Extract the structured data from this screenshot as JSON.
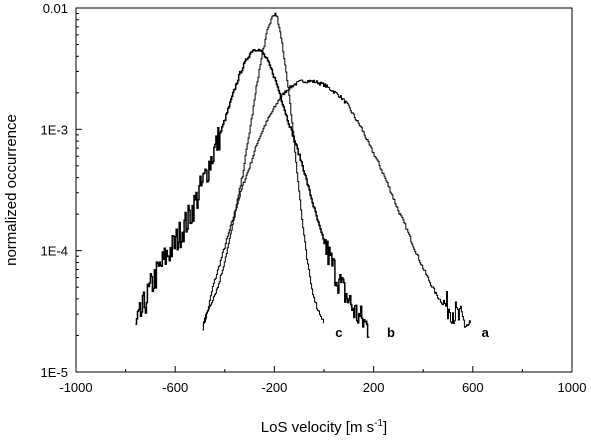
{
  "chart_data": {
    "type": "line",
    "title": "",
    "xlabel": "LoS velocity [m s",
    "xlabel_superscript": "-1",
    "xlabel_suffix": "]",
    "ylabel": "normalized occurrence",
    "xlim": [
      -1000,
      1000
    ],
    "ylim": [
      1e-05,
      0.01
    ],
    "yscale": "log",
    "grid": false,
    "legend": "none",
    "x_ticks": [
      -1000,
      -600,
      -200,
      200,
      600,
      1000
    ],
    "x_tick_labels": [
      "-1000",
      "-600",
      "-200",
      "200",
      "600",
      "1000"
    ],
    "y_ticks": [
      1e-05,
      0.0001,
      0.001,
      0.01
    ],
    "y_tick_labels": [
      "1E-5",
      "1E-4",
      "1E-3",
      "0.01"
    ],
    "line_color": "#000000",
    "series": [
      {
        "label": "a",
        "label_at": [
          650,
          2.1e-05
        ],
        "noise_from": 480,
        "x": [
          -490,
          -470,
          -450,
          -420,
          -390,
          -360,
          -330,
          -300,
          -270,
          -240,
          -210,
          -180,
          -150,
          -120,
          -90,
          -60,
          -30,
          0,
          30,
          60,
          90,
          120,
          150,
          180,
          210,
          240,
          270,
          300,
          330,
          360,
          390,
          420,
          450,
          480,
          510,
          540,
          560,
          580,
          590
        ],
        "y": [
          2.3e-05,
          3.2e-05,
          5e-05,
          8e-05,
          0.00013,
          0.00021,
          0.00034,
          0.0005,
          0.00078,
          0.00108,
          0.0014,
          0.0018,
          0.00212,
          0.00235,
          0.0025,
          0.0025,
          0.00245,
          0.00232,
          0.0021,
          0.0019,
          0.00163,
          0.00128,
          0.00102,
          0.00075,
          0.00057,
          0.00042,
          0.0003,
          0.00021,
          0.000155,
          0.000108,
          7.8e-05,
          5.8e-05,
          4.4e-05,
          3.6e-05,
          3.4e-05,
          2.8e-05,
          2.6e-05,
          2.4e-05,
          2.3e-05
        ]
      },
      {
        "label": "b",
        "label_at": [
          270,
          2.1e-05
        ],
        "noise_from": -760,
        "x": [
          -760,
          -730,
          -700,
          -670,
          -640,
          -610,
          -580,
          -550,
          -520,
          -490,
          -460,
          -430,
          -400,
          -370,
          -340,
          -310,
          -290,
          -270,
          -250,
          -230,
          -210,
          -190,
          -170,
          -150,
          -130,
          -110,
          -90,
          -70,
          -50,
          -30,
          -10,
          10,
          30,
          50,
          70,
          90,
          110,
          130,
          150,
          170,
          180
        ],
        "y": [
          2.3e-05,
          3.4e-05,
          5e-05,
          6.8e-05,
          8.8e-05,
          0.000108,
          0.00014,
          0.00018,
          0.00025,
          0.00036,
          0.00054,
          0.0008,
          0.00122,
          0.0019,
          0.0029,
          0.0039,
          0.0045,
          0.0046,
          0.0043,
          0.0037,
          0.003,
          0.0023,
          0.0017,
          0.00124,
          0.00094,
          0.0007,
          0.00052,
          0.00037,
          0.00026,
          0.000185,
          0.000135,
          0.0001,
          7.8e-05,
          6.2e-05,
          5e-05,
          4.2e-05,
          3.5e-05,
          3e-05,
          2.7e-05,
          2.4e-05,
          2.3e-05
        ]
      },
      {
        "label": "c",
        "label_at": [
          60,
          2.1e-05
        ],
        "noise_from": 9999,
        "x": [
          -490,
          -470,
          -450,
          -430,
          -410,
          -390,
          -370,
          -350,
          -330,
          -310,
          -290,
          -270,
          -250,
          -230,
          -210,
          -200,
          -190,
          -170,
          -150,
          -130,
          -110,
          -90,
          -70,
          -50,
          -30,
          -10,
          0
        ],
        "y": [
          2.5e-05,
          3.2e-05,
          4e-05,
          5e-05,
          7e-05,
          0.000105,
          0.00016,
          0.00026,
          0.00042,
          0.00075,
          0.00135,
          0.0025,
          0.0042,
          0.0065,
          0.0085,
          0.009,
          0.0082,
          0.0051,
          0.0026,
          0.00115,
          0.00045,
          0.00018,
          8.5e-05,
          4.8e-05,
          3.4e-05,
          2.8e-05,
          2.5e-05
        ]
      }
    ]
  }
}
